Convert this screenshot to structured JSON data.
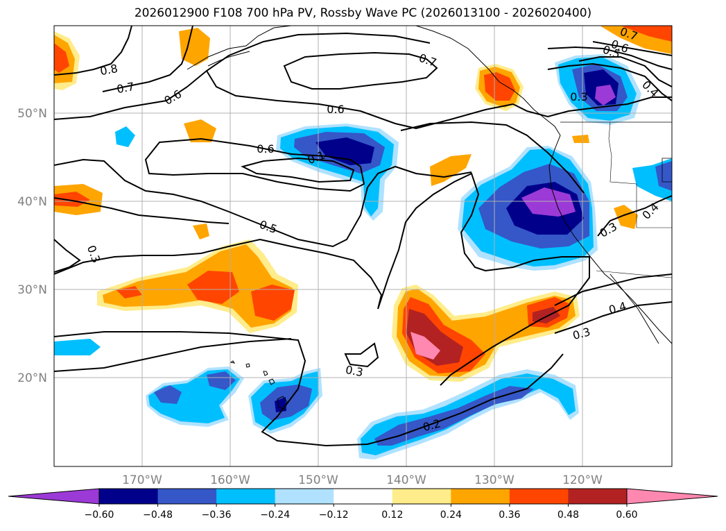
{
  "title": "2026012900 F108 700 hPa PV, Rossby Wave PC (2026013100 - 2026020400)",
  "lat_labels": [
    "50°N",
    "40°N",
    "30°N",
    "20°N"
  ],
  "lon_labels": [
    "170°W",
    "160°W",
    "150°W",
    "140°W",
    "130°W",
    "120°W"
  ],
  "contour_labels": [
    "0.8",
    "0.7",
    "0.6",
    "0.6",
    "0.6",
    "0.7",
    "0.7",
    "0.6",
    "0.5",
    "0.4",
    "0.5",
    "0.3",
    "0.3",
    "0.3",
    "0.3",
    "0.2",
    "0.3",
    "0.4",
    "0.4",
    "0.1"
  ],
  "colorbar": {
    "ticks": [
      "−0.60",
      "−0.48",
      "−0.36",
      "−0.24",
      "−0.12",
      "0.12",
      "0.24",
      "0.36",
      "0.48",
      "0.60"
    ],
    "colors": [
      "#9b3ad6",
      "#00008b",
      "#3557c8",
      "#00bfff",
      "#b0e2ff",
      "#ffffff",
      "#ffec8b",
      "#ffa500",
      "#ff4500",
      "#b22222",
      "#ff88b0"
    ]
  }
}
